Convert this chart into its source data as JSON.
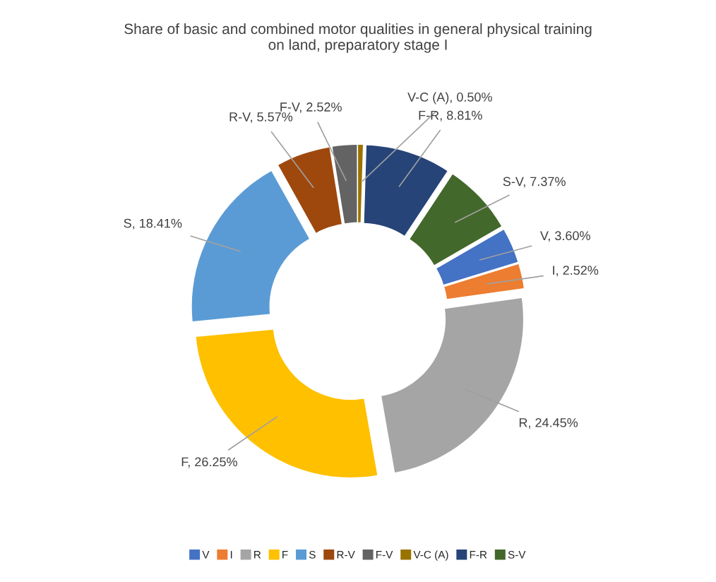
{
  "chart_data": {
    "type": "donut",
    "title": "Share of basic and combined motor qualities in general physical training\non land, preparatory stage I",
    "categories": [
      "V",
      "I",
      "R",
      "F",
      "S",
      "R-V",
      "F-V",
      "V-C (A)",
      "F-R",
      "S-V"
    ],
    "values": [
      3.6,
      2.52,
      24.45,
      26.25,
      18.41,
      5.57,
      2.52,
      0.5,
      8.81,
      7.37
    ],
    "colors": [
      "#4472c4",
      "#ed7d31",
      "#a5a5a5",
      "#ffc000",
      "#5b9bd5",
      "#9e480e",
      "#636363",
      "#997300",
      "#264478",
      "#43682b"
    ],
    "value_labels": [
      "V, 3.60%",
      "I, 2.52%",
      "R, 24.45%",
      "F, 26.25%",
      "S, 18.41%",
      "R-V, 5.57%",
      "F-V, 2.52%",
      "V-C (A), 0.50%",
      "F-R, 8.81%",
      "S-V, 7.37%"
    ],
    "legend": "bottom"
  }
}
